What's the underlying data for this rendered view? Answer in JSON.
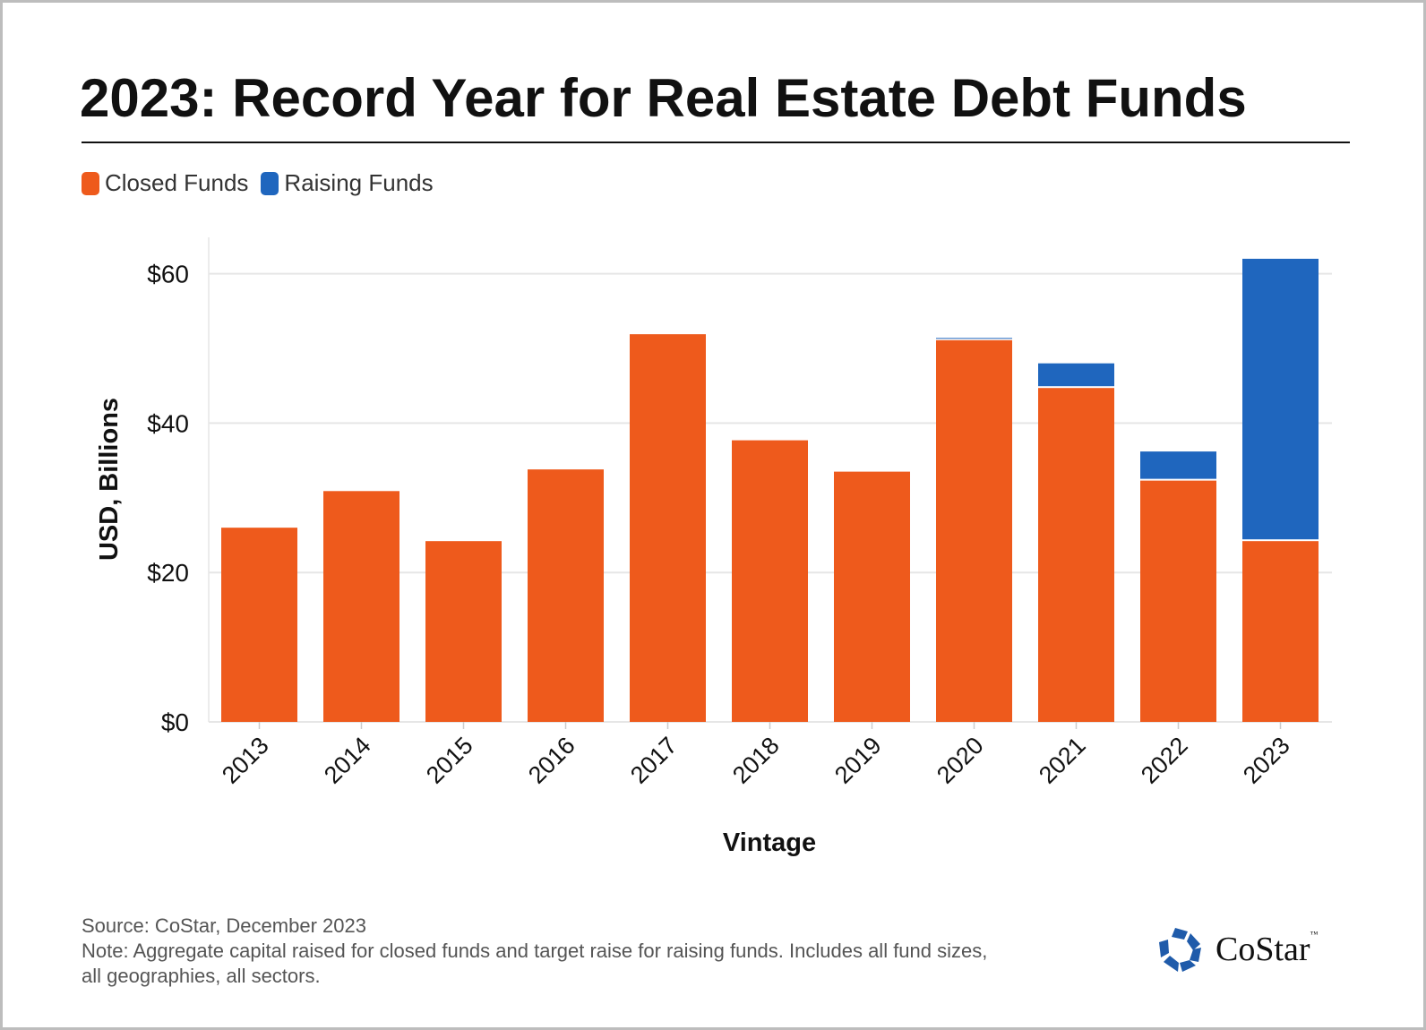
{
  "title": "2023: Record Year for Real Estate Debt Funds",
  "legend": [
    {
      "label": "Closed Funds",
      "color": "#EE5A1C"
    },
    {
      "label": "Raising Funds",
      "color": "#1F66BE"
    }
  ],
  "chart_data": {
    "type": "bar",
    "stacked": true,
    "title": "2023: Record Year for Real Estate Debt Funds",
    "xlabel": "Vintage",
    "ylabel": "USD, Billions",
    "categories": [
      "2013",
      "2014",
      "2015",
      "2016",
      "2017",
      "2018",
      "2019",
      "2020",
      "2021",
      "2022",
      "2023"
    ],
    "series": [
      {
        "name": "Closed Funds",
        "color": "#EE5A1C",
        "values": [
          26.0,
          30.9,
          24.2,
          33.8,
          51.9,
          37.7,
          33.5,
          51.1,
          44.7,
          32.3,
          24.2
        ]
      },
      {
        "name": "Raising Funds",
        "color": "#1F66BE",
        "values": [
          0,
          0,
          0,
          0,
          0,
          0,
          0,
          0.3,
          3.3,
          3.9,
          37.8
        ]
      }
    ],
    "ylim": [
      0,
      65
    ],
    "yticks": [
      0,
      20,
      40,
      60
    ],
    "ytick_labels": [
      "$0",
      "$20",
      "$40",
      "$60"
    ],
    "grid": true,
    "legend_position": "top-left"
  },
  "footer": {
    "source": "Source: CoStar, December 2023",
    "note_line1": "Note: Aggregate capital raised for closed funds and target raise for raising funds. Includes all fund sizes,",
    "note_line2": "all geographies, all sectors."
  },
  "logo": {
    "text": "CoStar",
    "tm": "™",
    "color": "#1F5BAA"
  }
}
